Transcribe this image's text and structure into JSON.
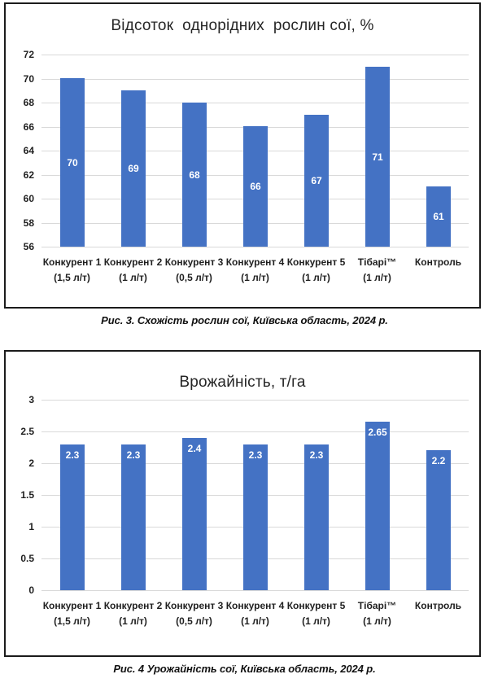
{
  "figures": [
    {
      "caption": "Рис. 3. Схожість рослин сої, Київська область, 2024 р."
    },
    {
      "caption": "Рис. 4 Урожайність сої, Київська область, 2024 р."
    }
  ],
  "chart_data": [
    {
      "type": "bar",
      "title": "Відсоток  однорідних  рослин сої, %",
      "categories": [
        "Конкурент 1",
        "Конкурент 2",
        "Конкурент 3",
        "Конкурент 4",
        "Конкурент 5",
        "Тібарі™",
        "Контроль"
      ],
      "category_sublabels": [
        "(1,5 л/т)",
        "(1 л/т)",
        "(0,5 л/т)",
        "(1 л/т)",
        "(1 л/т)",
        "(1 л/т)",
        ""
      ],
      "values": [
        70,
        69,
        68,
        66,
        67,
        71,
        61
      ],
      "value_labels": [
        "70",
        "69",
        "68",
        "66",
        "67",
        "71",
        "61"
      ],
      "ylim": [
        56,
        72
      ],
      "yticks": [
        "72",
        "70",
        "68",
        "66",
        "64",
        "62",
        "60",
        "58",
        "56"
      ],
      "xlabel": "",
      "ylabel": "",
      "grid": true,
      "legend": "none",
      "label_position": "center",
      "bar_color": "#4472c4",
      "grid_color": "#d9d9d9",
      "label_color": "#ffffff"
    },
    {
      "type": "bar",
      "title": "Врожайність, т/га",
      "categories": [
        "Конкурент 1",
        "Конкурент 2",
        "Конкурент 3",
        "Конкурент 4",
        "Конкурент 5",
        "Тібарі™",
        "Контроль"
      ],
      "category_sublabels": [
        "(1,5 л/т)",
        "(1 л/т)",
        "(0,5 л/т)",
        "(1 л/т)",
        "(1 л/т)",
        "(1 л/т)",
        ""
      ],
      "values": [
        2.3,
        2.3,
        2.4,
        2.3,
        2.3,
        2.65,
        2.2
      ],
      "value_labels": [
        "2.3",
        "2.3",
        "2.4",
        "2.3",
        "2.3",
        "2.65",
        "2.2"
      ],
      "ylim": [
        0,
        3
      ],
      "yticks": [
        "3",
        "2.5",
        "2",
        "1.5",
        "1",
        "0.5",
        "0"
      ],
      "xlabel": "",
      "ylabel": "",
      "grid": true,
      "legend": "none",
      "label_position": "inside-end",
      "bar_color": "#4472c4",
      "grid_color": "#d9d9d9",
      "label_color": "#ffffff"
    }
  ]
}
